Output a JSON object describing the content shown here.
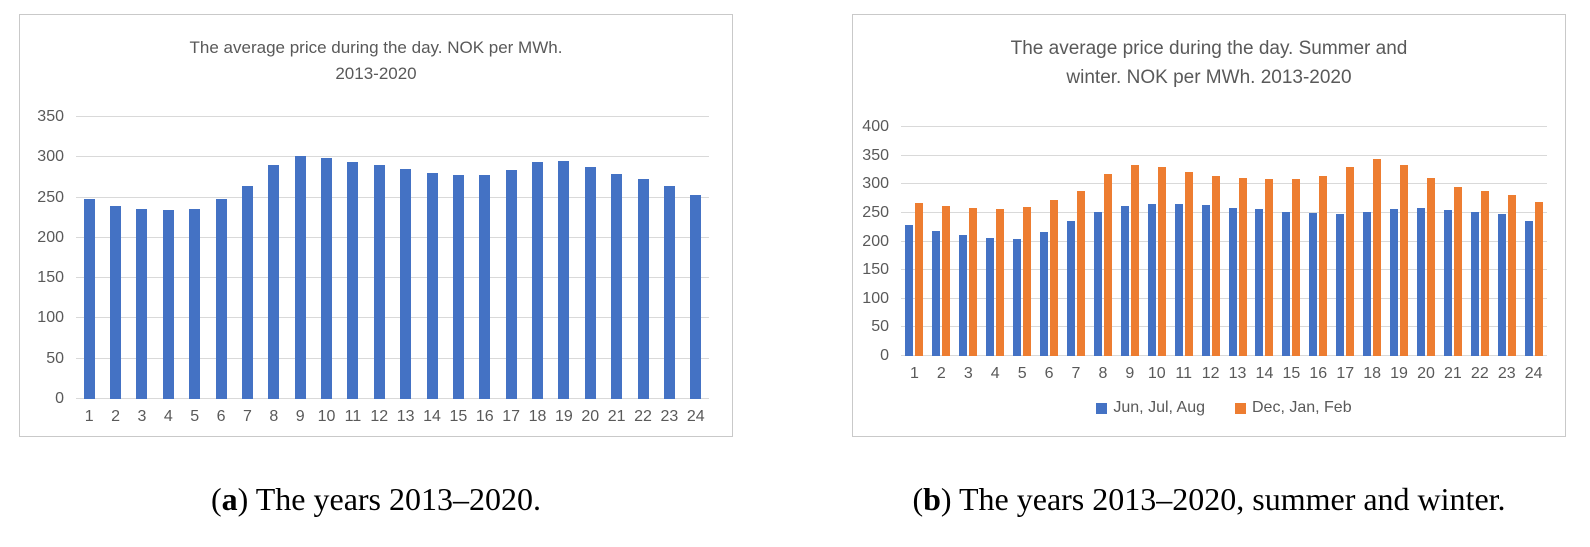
{
  "panels": [
    {
      "title_line1": "The average price during the day. NOK per MWh.",
      "title_line2": "2013-2020",
      "caption_open": "(",
      "caption_letter": "a",
      "caption_rest": ") The years 2013–2020."
    },
    {
      "title_line1": "The average price during the day. Summer and",
      "title_line2": "winter. NOK per MWh. 2013-2020",
      "caption_open": "(",
      "caption_letter": "b",
      "caption_rest": ") The years 2013–2020, summer and winter."
    }
  ],
  "colors": {
    "bar_blue": "#4472C4",
    "bar_orange": "#ED7D31",
    "gridline": "#D9D9D9",
    "axis_text": "#595959",
    "panel_border": "#C9C9C9"
  },
  "chart_data": [
    {
      "type": "bar",
      "title": "The average price during the day. NOK per MWh. 2013-2020",
      "xlabel": "",
      "ylabel": "",
      "categories": [
        "1",
        "2",
        "3",
        "4",
        "5",
        "6",
        "7",
        "8",
        "9",
        "10",
        "11",
        "12",
        "13",
        "14",
        "15",
        "16",
        "17",
        "18",
        "19",
        "20",
        "21",
        "22",
        "23",
        "24"
      ],
      "series": [
        {
          "color": "#4472C4",
          "values": [
            248,
            240,
            236,
            234,
            236,
            248,
            265,
            290,
            302,
            299,
            294,
            290,
            285,
            281,
            278,
            278,
            284,
            294,
            295,
            288,
            279,
            273,
            265,
            253
          ]
        }
      ],
      "ylim": [
        0,
        350
      ],
      "yticks": [
        0,
        50,
        100,
        150,
        200,
        250,
        300,
        350
      ],
      "grid": true,
      "legend": false
    },
    {
      "type": "bar",
      "title": "The average price during the day. Summer and winter. NOK per MWh. 2013-2020",
      "xlabel": "",
      "ylabel": "",
      "categories": [
        "1",
        "2",
        "3",
        "4",
        "5",
        "6",
        "7",
        "8",
        "9",
        "10",
        "11",
        "12",
        "13",
        "14",
        "15",
        "16",
        "17",
        "18",
        "19",
        "20",
        "21",
        "22",
        "23",
        "24"
      ],
      "series": [
        {
          "name": "Jun, Jul, Aug",
          "color": "#4472C4",
          "values": [
            228,
            218,
            211,
            206,
            205,
            216,
            236,
            252,
            262,
            265,
            266,
            263,
            258,
            256,
            252,
            249,
            248,
            252,
            256,
            258,
            255,
            252,
            248,
            236
          ]
        },
        {
          "name": "Dec, Jan, Feb",
          "color": "#ED7D31",
          "values": [
            268,
            262,
            258,
            257,
            261,
            272,
            288,
            318,
            334,
            330,
            322,
            315,
            311,
            309,
            309,
            315,
            330,
            345,
            333,
            311,
            296,
            288,
            281,
            269
          ]
        }
      ],
      "ylim": [
        0,
        400
      ],
      "yticks": [
        0,
        50,
        100,
        150,
        200,
        250,
        300,
        350,
        400
      ],
      "grid": true,
      "legend_position": "bottom"
    }
  ]
}
